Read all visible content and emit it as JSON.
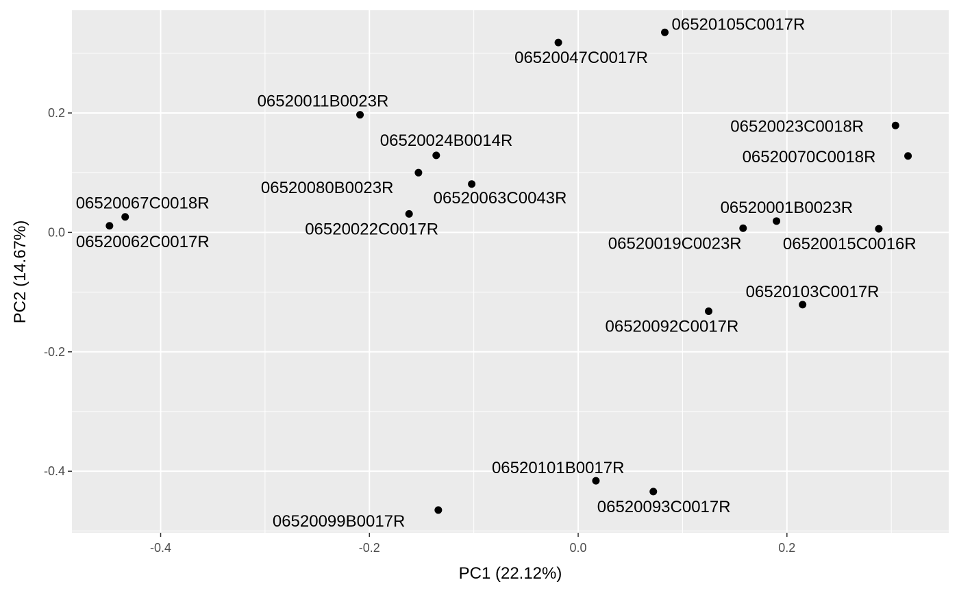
{
  "chart_data": {
    "type": "scatter",
    "title": "",
    "xlabel": "PC1 (22.12%)",
    "ylabel": "PC2 (14.67%)",
    "xlim": [
      -0.485,
      0.355
    ],
    "ylim": [
      -0.503,
      0.372
    ],
    "grid": true,
    "legend": "none",
    "xticks": [
      -0.4,
      -0.2,
      0.0,
      0.2
    ],
    "xtick_labels": [
      "-0.4",
      "-0.2",
      "0.0",
      "0.2"
    ],
    "yticks": [
      -0.4,
      -0.2,
      0.0,
      0.2
    ],
    "ytick_labels": [
      "-0.4",
      "-0.2",
      "0.0",
      "0.2"
    ],
    "colors": {
      "panel": "#ebebeb",
      "grid_major": "#ffffff",
      "point": "#000000"
    },
    "points": [
      {
        "label": "06520105C0017R",
        "x": 0.083,
        "y": 0.335
      },
      {
        "label": "06520047C0017R",
        "x": -0.019,
        "y": 0.318
      },
      {
        "label": "06520011B0023R",
        "x": -0.209,
        "y": 0.197
      },
      {
        "label": "06520023C0018R",
        "x": 0.304,
        "y": 0.179
      },
      {
        "label": "06520024B0014R",
        "x": -0.136,
        "y": 0.129
      },
      {
        "label": "06520070C0018R",
        "x": 0.316,
        "y": 0.128
      },
      {
        "label": "06520080B0023R",
        "x": -0.153,
        "y": 0.1
      },
      {
        "label": "06520063C0043R",
        "x": -0.102,
        "y": 0.081
      },
      {
        "label": "06520067C0018R",
        "x": -0.434,
        "y": 0.026
      },
      {
        "label": "06520062C0017R",
        "x": -0.449,
        "y": 0.011
      },
      {
        "label": "06520022C0017R",
        "x": -0.162,
        "y": 0.031
      },
      {
        "label": "06520001B0023R",
        "x": 0.19,
        "y": 0.019
      },
      {
        "label": "06520019C0023R",
        "x": 0.158,
        "y": 0.007
      },
      {
        "label": "06520015C0016R",
        "x": 0.288,
        "y": 0.006
      },
      {
        "label": "06520103C0017R",
        "x": 0.215,
        "y": -0.121
      },
      {
        "label": "06520092C0017R",
        "x": 0.125,
        "y": -0.132
      },
      {
        "label": "06520101B0017R",
        "x": 0.017,
        "y": -0.416
      },
      {
        "label": "06520093C0017R",
        "x": 0.072,
        "y": -0.434
      },
      {
        "label": "06520099B0017R",
        "x": -0.134,
        "y": -0.465
      }
    ]
  }
}
